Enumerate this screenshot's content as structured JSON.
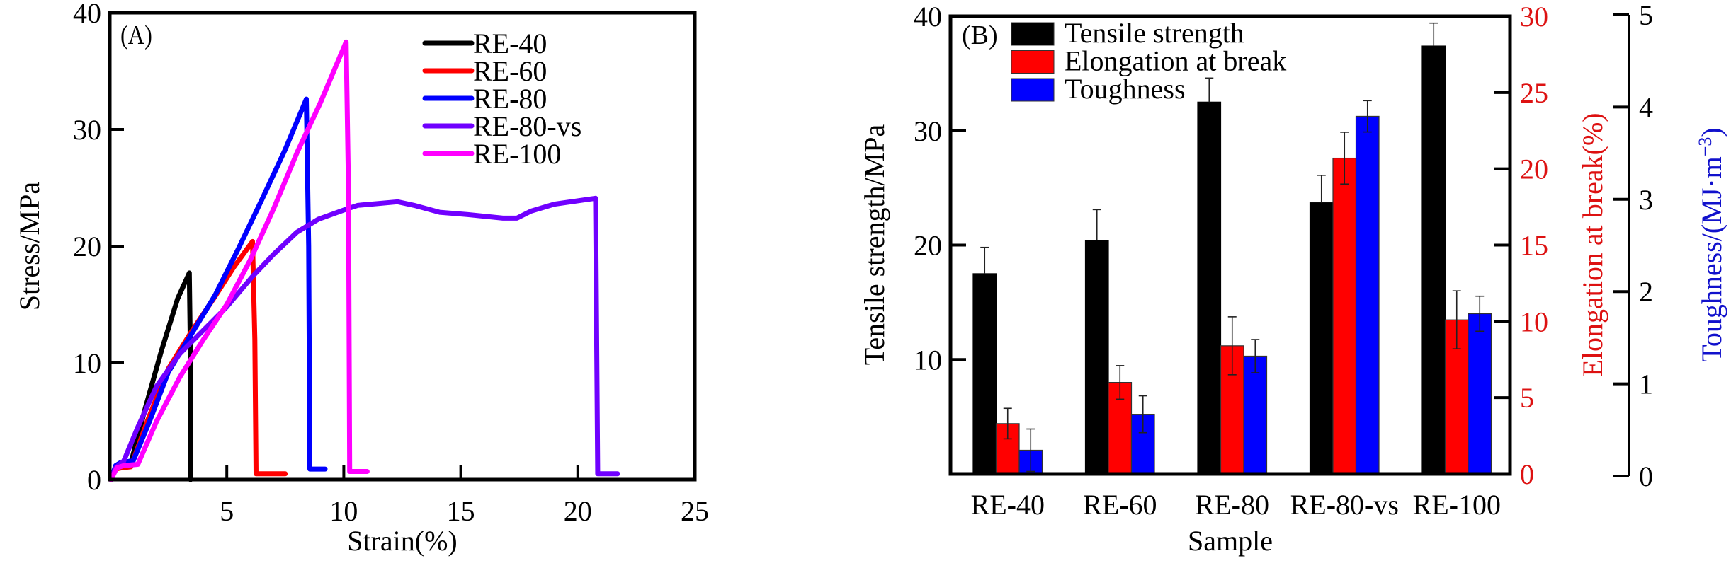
{
  "chart_data": [
    {
      "type": "line",
      "panel_label": "(A)",
      "xlabel": "Strain(%)",
      "ylabel": "Stress/MPa",
      "xlim": [
        0,
        25
      ],
      "ylim": [
        0,
        40
      ],
      "xticks": [
        5,
        10,
        15,
        20,
        25
      ],
      "yticks": [
        0,
        10,
        20,
        30,
        40
      ],
      "grid": false,
      "legend_position": "top-right",
      "series": [
        {
          "name": "RE-40",
          "color": "#000000",
          "x": [
            0.05,
            0.25,
            0.5,
            0.9,
            1.5,
            2.2,
            2.9,
            3.4,
            3.45,
            3.45
          ],
          "y": [
            0.0,
            1.1,
            1.3,
            1.4,
            6.0,
            11.0,
            15.5,
            17.7,
            10.0,
            0.0
          ]
        },
        {
          "name": "RE-60",
          "color": "#ff0000",
          "x": [
            0.05,
            0.25,
            0.5,
            0.9,
            1.6,
            2.5,
            3.5,
            4.5,
            5.3,
            6.1,
            6.2,
            6.25,
            7.5
          ],
          "y": [
            0.0,
            0.9,
            1.0,
            1.1,
            5.0,
            9.5,
            12.7,
            15.7,
            18.2,
            20.4,
            12.0,
            0.5,
            0.5
          ]
        },
        {
          "name": "RE-80",
          "color": "#0000ff",
          "x": [
            0.05,
            0.25,
            0.5,
            1.0,
            1.7,
            2.5,
            3.5,
            4.5,
            5.5,
            6.5,
            7.5,
            8.4,
            8.5,
            8.55,
            9.2
          ],
          "y": [
            0.0,
            1.2,
            1.5,
            1.6,
            5.0,
            9.2,
            12.5,
            15.8,
            19.8,
            24.0,
            28.3,
            32.6,
            20.0,
            0.9,
            0.9
          ]
        },
        {
          "name": "RE-80-vs",
          "color": "#7000ff",
          "x": [
            0.05,
            0.25,
            0.6,
            1.2,
            2.0,
            3.0,
            4.0,
            5.0,
            6.1,
            7.0,
            8.0,
            8.9,
            10.15,
            10.6,
            12.3,
            13.0,
            14.1,
            15.3,
            16.8,
            17.4,
            18.0,
            19.0,
            20.76,
            20.8,
            20.85,
            21.7
          ],
          "y": [
            0.0,
            1.0,
            1.6,
            4.5,
            8.0,
            10.8,
            12.8,
            14.8,
            17.4,
            19.3,
            21.2,
            22.3,
            23.2,
            23.5,
            23.8,
            23.5,
            22.9,
            22.7,
            22.4,
            22.4,
            23.0,
            23.6,
            24.1,
            14.0,
            0.5,
            0.5
          ]
        },
        {
          "name": "RE-100",
          "color": "#ff00ff",
          "x": [
            0.05,
            0.3,
            0.6,
            1.2,
            2.0,
            3.0,
            4.0,
            5.0,
            6.0,
            7.0,
            8.0,
            9.0,
            10.1,
            10.2,
            10.25,
            11.0
          ],
          "y": [
            0.0,
            1.0,
            1.2,
            1.3,
            5.0,
            8.8,
            12.0,
            15.0,
            18.8,
            23.2,
            28.0,
            32.3,
            37.5,
            25.0,
            0.7,
            0.7
          ]
        }
      ]
    },
    {
      "type": "bar",
      "panel_label": "(B)",
      "xlabel": "Sample",
      "categories": [
        "RE-40",
        "RE-60",
        "RE-80",
        "RE-80-vs",
        "RE-100"
      ],
      "grid": false,
      "legend_position": "top-left",
      "axes": {
        "left": {
          "label": "Tensile strength/MPa",
          "range": [
            0,
            40
          ],
          "ticks": [
            10,
            20,
            30,
            40
          ],
          "color": "#000000"
        },
        "right": {
          "label": "Elongation at break(%)",
          "range": [
            0,
            30
          ],
          "ticks": [
            0,
            5,
            10,
            15,
            20,
            25,
            30
          ],
          "color": "#dd1111"
        },
        "right_offset": {
          "label_prefix": "Toughness/(MJ·m",
          "label_sup": "−3",
          "label_suffix": ")",
          "range": [
            0,
            5
          ],
          "ticks": [
            0,
            1,
            2,
            3,
            4,
            5
          ],
          "tick_color": "#000000",
          "label_color": "#1111cc"
        }
      },
      "series": [
        {
          "name": "Tensile strength",
          "color": "#000000",
          "axis": "left",
          "values": [
            17.5,
            20.4,
            32.5,
            23.7,
            37.4
          ],
          "errors": [
            2.3,
            2.7,
            2.1,
            2.4,
            2.0
          ]
        },
        {
          "name": "Elongation at break",
          "color": "#ff0000",
          "axis": "right",
          "values": [
            3.3,
            6.0,
            8.4,
            20.7,
            10.1
          ],
          "errors": [
            1.0,
            1.1,
            1.9,
            1.7,
            1.9
          ]
        },
        {
          "name": "Toughness",
          "color": "#0000ff",
          "axis": "right_offset",
          "values": [
            0.28,
            0.67,
            1.3,
            3.9,
            1.76
          ],
          "errors": [
            0.23,
            0.2,
            0.18,
            0.17,
            0.19
          ]
        }
      ]
    }
  ]
}
